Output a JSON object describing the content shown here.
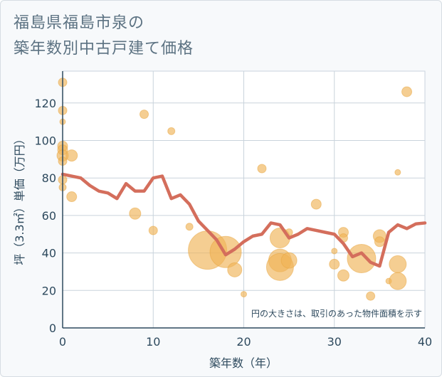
{
  "chart_data": {
    "type": "scatter",
    "title": [
      "福島県福島市泉の",
      "築年数別中古戸建て価格"
    ],
    "xlabel": "築年数（年）",
    "ylabel": "坪（3.3㎡）単価（万円）",
    "note": "円の大きさは、取引のあった物件面積を示す",
    "xlim": [
      0,
      40
    ],
    "ylim": [
      0,
      137
    ],
    "xticks": [
      0,
      10,
      20,
      30,
      40
    ],
    "yticks": [
      0,
      20,
      40,
      60,
      80,
      100,
      120
    ],
    "grid": true,
    "colors": {
      "bubble": "#f0b458",
      "line": "#d46e5c",
      "grid": "#c9d3dc",
      "axis": "#2e4a5e"
    },
    "points": [
      {
        "x": 0,
        "y": 131,
        "s": 6
      },
      {
        "x": 0,
        "y": 116,
        "s": 6
      },
      {
        "x": 0,
        "y": 110,
        "s": 4
      },
      {
        "x": 0,
        "y": 97,
        "s": 7
      },
      {
        "x": 0,
        "y": 95,
        "s": 7
      },
      {
        "x": 0,
        "y": 92,
        "s": 8
      },
      {
        "x": 0,
        "y": 89,
        "s": 6
      },
      {
        "x": 0,
        "y": 79,
        "s": 6
      },
      {
        "x": 0,
        "y": 75,
        "s": 5
      },
      {
        "x": 1,
        "y": 92,
        "s": 8
      },
      {
        "x": 1,
        "y": 70,
        "s": 7
      },
      {
        "x": 8,
        "y": 61,
        "s": 8
      },
      {
        "x": 9,
        "y": 114,
        "s": 6
      },
      {
        "x": 10,
        "y": 52,
        "s": 6
      },
      {
        "x": 12,
        "y": 105,
        "s": 5
      },
      {
        "x": 14,
        "y": 54,
        "s": 5
      },
      {
        "x": 16,
        "y": 41.5,
        "s": 27
      },
      {
        "x": 18,
        "y": 40.5,
        "s": 22
      },
      {
        "x": 19,
        "y": 31,
        "s": 10
      },
      {
        "x": 20,
        "y": 18,
        "s": 4
      },
      {
        "x": 22,
        "y": 85,
        "s": 6
      },
      {
        "x": 24,
        "y": 48,
        "s": 14
      },
      {
        "x": 24,
        "y": 36,
        "s": 16
      },
      {
        "x": 24,
        "y": 32.5,
        "s": 19
      },
      {
        "x": 25,
        "y": 36,
        "s": 11
      },
      {
        "x": 25,
        "y": 51,
        "s": 5
      },
      {
        "x": 28,
        "y": 66,
        "s": 7
      },
      {
        "x": 30,
        "y": 41,
        "s": 4
      },
      {
        "x": 30,
        "y": 34,
        "s": 7
      },
      {
        "x": 31,
        "y": 51,
        "s": 7
      },
      {
        "x": 31,
        "y": 48,
        "s": 6
      },
      {
        "x": 31,
        "y": 28,
        "s": 8
      },
      {
        "x": 33,
        "y": 37,
        "s": 20
      },
      {
        "x": 34,
        "y": 17,
        "s": 6
      },
      {
        "x": 35,
        "y": 49,
        "s": 9
      },
      {
        "x": 35,
        "y": 46,
        "s": 7
      },
      {
        "x": 36,
        "y": 25,
        "s": 4
      },
      {
        "x": 37,
        "y": 83,
        "s": 4
      },
      {
        "x": 37,
        "y": 34,
        "s": 12
      },
      {
        "x": 37,
        "y": 25,
        "s": 12
      },
      {
        "x": 38,
        "y": 126,
        "s": 7
      }
    ],
    "trend": {
      "x": [
        0,
        1,
        2,
        3,
        4,
        5,
        6,
        7,
        8,
        9,
        10,
        11,
        12,
        13,
        14,
        15,
        16,
        17,
        18,
        19,
        20,
        21,
        22,
        23,
        24,
        25,
        26,
        27,
        28,
        29,
        30,
        31,
        32,
        33,
        34,
        35,
        36,
        37,
        38,
        39,
        40
      ],
      "y": [
        82,
        81,
        80,
        76,
        73,
        72,
        69,
        77,
        73,
        73,
        80,
        81,
        69,
        71,
        66,
        57,
        52,
        47,
        39,
        42,
        46,
        49,
        50,
        56,
        55,
        48,
        50,
        53,
        52,
        51,
        50,
        45,
        38,
        40,
        35,
        33,
        51,
        55,
        53,
        55.5,
        56
      ]
    }
  }
}
